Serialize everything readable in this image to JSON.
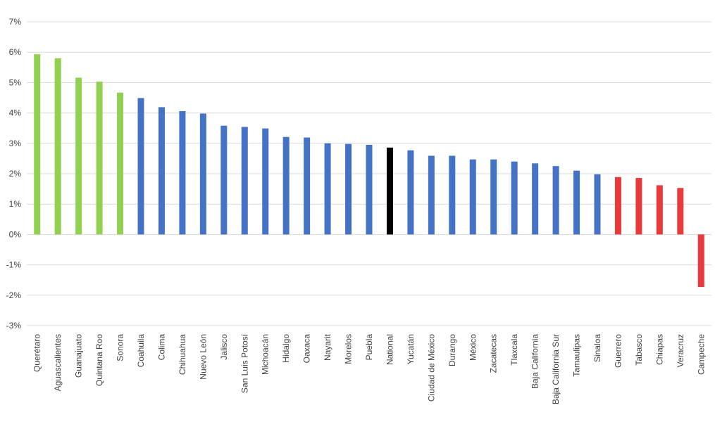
{
  "chart_data": {
    "type": "bar",
    "title": "",
    "xlabel": "",
    "ylabel": "",
    "ylim": [
      -3,
      7
    ],
    "yticks": [
      -3,
      -2,
      -1,
      0,
      1,
      2,
      3,
      4,
      5,
      6,
      7
    ],
    "ytick_labels": [
      "-3%",
      "-2%",
      "-1%",
      "0%",
      "1%",
      "2%",
      "3%",
      "4%",
      "5%",
      "6%",
      "7%"
    ],
    "grid": true,
    "legend": "none",
    "categories": [
      "Querétaro",
      "Aguascalientes",
      "Guanajuato",
      "Quintana Roo",
      "Sonora",
      "Coahuila",
      "Colima",
      "Chihuahua",
      "Nuevo León",
      "Jalisco",
      "San Luis Potosí",
      "Michoacán",
      "Hidalgo",
      "Oaxaca",
      "Nayarit",
      "Morelos",
      "Puebla",
      "National",
      "Yucatán",
      "Ciudad de México",
      "Durango",
      "México",
      "Zacatecas",
      "Tlaxcala",
      "Baja California",
      "Baja California Sur",
      "Tamaulipas",
      "Sinaloa",
      "Guerrero",
      "Tabasco",
      "Chiapas",
      "Veracruz",
      "Campeche"
    ],
    "values": [
      5.93,
      5.8,
      5.16,
      5.03,
      4.67,
      4.49,
      4.19,
      4.06,
      3.98,
      3.58,
      3.54,
      3.49,
      3.21,
      3.19,
      3.0,
      2.98,
      2.95,
      2.86,
      2.77,
      2.59,
      2.59,
      2.47,
      2.47,
      2.4,
      2.34,
      2.25,
      2.1,
      1.98,
      1.89,
      1.86,
      1.62,
      1.53,
      -1.73
    ],
    "bar_groups": [
      "top",
      "top",
      "top",
      "top",
      "top",
      "mid",
      "mid",
      "mid",
      "mid",
      "mid",
      "mid",
      "mid",
      "mid",
      "mid",
      "mid",
      "mid",
      "mid",
      "national",
      "mid",
      "mid",
      "mid",
      "mid",
      "mid",
      "mid",
      "mid",
      "mid",
      "mid",
      "mid",
      "bottom",
      "bottom",
      "bottom",
      "bottom",
      "bottom"
    ],
    "colors": {
      "top": "#92d050",
      "mid": "#4472c4",
      "national": "#000000",
      "bottom": "#e8393b",
      "grid": "#d9d9d9",
      "axis_text": "#404040",
      "label_text": "#000000"
    }
  }
}
